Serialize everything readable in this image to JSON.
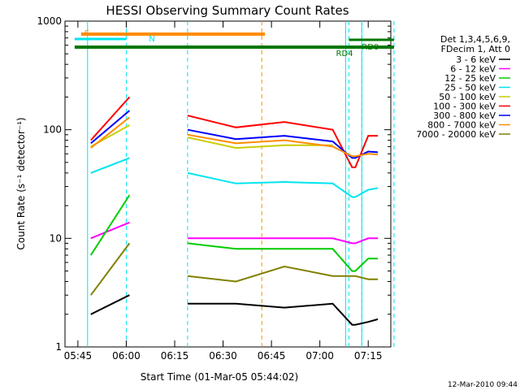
{
  "chart_data": {
    "type": "line",
    "title": "HESSI Observing Summary Count Rates",
    "xlabel": "Start Time (01-Mar-05 05:44:02)",
    "ylabel": "Count Rate (s⁻¹ detector⁻¹)",
    "yscale": "log",
    "ylim": [
      1,
      1000
    ],
    "xlim": [
      "05:41",
      "07:22"
    ],
    "x_ticks": [
      "05:45",
      "06:00",
      "06:15",
      "06:30",
      "06:45",
      "07:00",
      "07:15"
    ],
    "y_ticks": [
      "1",
      "10",
      "100",
      "1000"
    ],
    "x_minutes": [
      5,
      17,
      18,
      35,
      50,
      65,
      80,
      86,
      87,
      91,
      94
    ],
    "series": [
      {
        "name": "3 - 6 keV",
        "color": "#000000",
        "values": [
          2,
          3,
          null,
          2.5,
          2.5,
          2.3,
          2.5,
          1.6,
          1.6,
          1.7,
          1.8
        ]
      },
      {
        "name": "6 - 12 keV",
        "color": "#ff00ff",
        "values": [
          10,
          14,
          null,
          10,
          10,
          10,
          10,
          9,
          9,
          10,
          10
        ]
      },
      {
        "name": "12 - 25 keV",
        "color": "#00cc00",
        "values": [
          7,
          25,
          null,
          9,
          8,
          8,
          8,
          5,
          5,
          6.5,
          6.5
        ]
      },
      {
        "name": "25 - 50 keV",
        "color": "#00e5ee",
        "values": [
          40,
          55,
          null,
          40,
          32,
          33,
          32,
          24,
          24,
          28,
          29
        ]
      },
      {
        "name": "50 - 100 keV",
        "color": "#cccc00",
        "values": [
          70,
          110,
          null,
          85,
          68,
          72,
          72,
          null,
          null,
          null,
          null
        ]
      },
      {
        "name": "100 - 300 keV",
        "color": "#ff0000",
        "values": [
          80,
          200,
          null,
          135,
          105,
          118,
          100,
          45,
          45,
          88,
          88
        ]
      },
      {
        "name": "300 - 800 keV",
        "color": "#0000ff",
        "values": [
          75,
          150,
          null,
          100,
          82,
          88,
          78,
          55,
          55,
          63,
          62
        ]
      },
      {
        "name": "800 - 7000 keV",
        "color": "#ff8c00",
        "values": [
          68,
          130,
          null,
          90,
          75,
          80,
          70,
          57,
          57,
          60,
          59
        ]
      },
      {
        "name": "7000 - 20000 keV",
        "color": "#808000",
        "values": [
          3,
          9,
          null,
          4.5,
          4,
          5.5,
          4.5,
          4.5,
          4.5,
          4.2,
          4.2
        ]
      }
    ],
    "legend_header": [
      "Det 1,3,4,5,6,9,",
      "FDecim 1, Att 0"
    ],
    "legend_position": "right",
    "flags": [
      {
        "label": "S",
        "color": "#ff8c00"
      },
      {
        "label": "N",
        "color": "#00e5ee"
      },
      {
        "label": "RD0",
        "color": "#007700"
      },
      {
        "label": "RD4",
        "color": "#007700"
      }
    ],
    "timestamp": "12-Mar-2010 09:44"
  }
}
